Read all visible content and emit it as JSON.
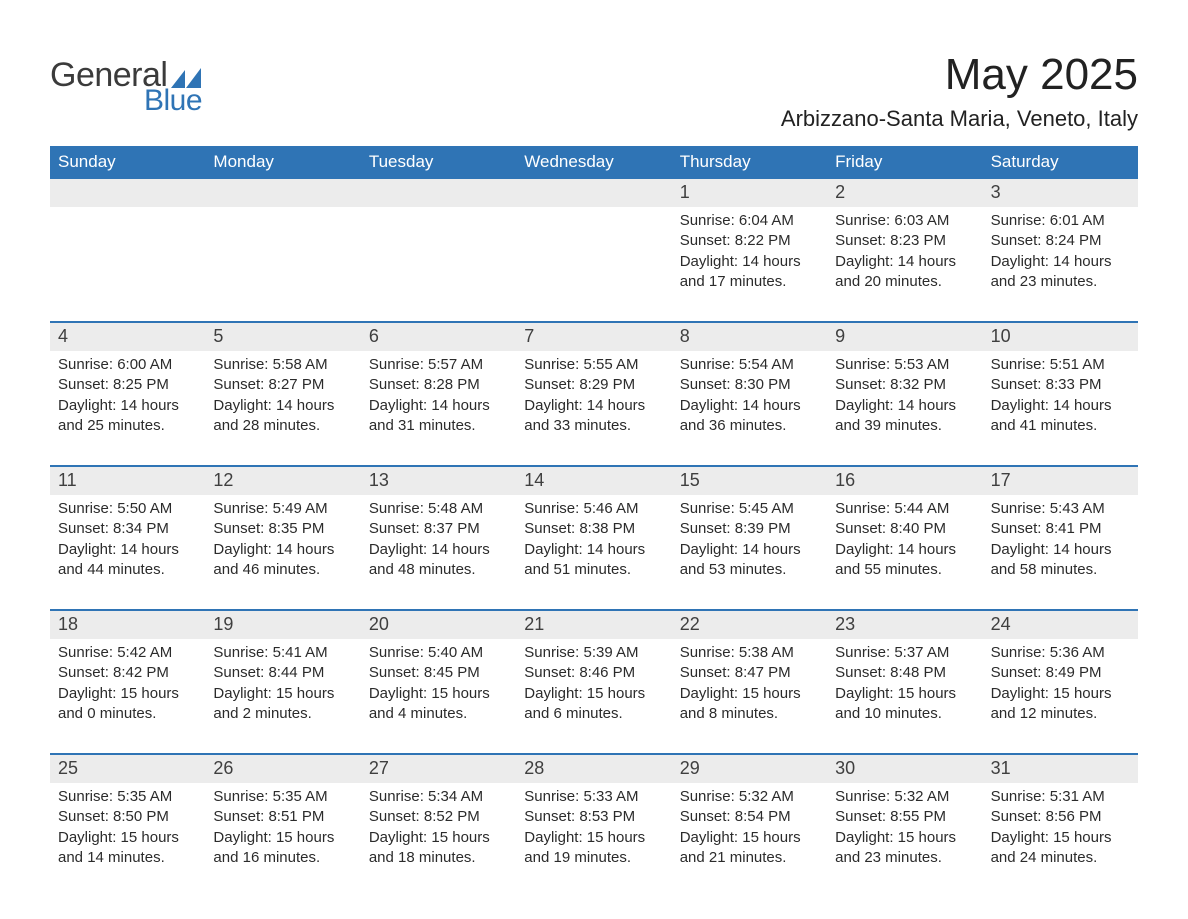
{
  "logo": {
    "text1": "General",
    "text2": "Blue",
    "shape_color": "#2f74b5",
    "text1_color": "#3b3b3b"
  },
  "header": {
    "month_title": "May 2025",
    "location": "Arbizzano-Santa Maria, Veneto, Italy"
  },
  "colors": {
    "header_bg": "#2f74b5",
    "header_text": "#ffffff",
    "daynum_bg": "#ececec",
    "week_border": "#2f74b5",
    "body_text": "#2b2b2b",
    "page_bg": "#ffffff"
  },
  "typography": {
    "month_title_fontsize": 44,
    "location_fontsize": 22,
    "weekday_fontsize": 17,
    "daynum_fontsize": 18,
    "body_fontsize": 15,
    "font_family": "Arial"
  },
  "weekdays": [
    "Sunday",
    "Monday",
    "Tuesday",
    "Wednesday",
    "Thursday",
    "Friday",
    "Saturday"
  ],
  "weeks": [
    [
      null,
      null,
      null,
      null,
      {
        "n": "1",
        "sunrise": "Sunrise: 6:04 AM",
        "sunset": "Sunset: 8:22 PM",
        "daylight": "Daylight: 14 hours and 17 minutes."
      },
      {
        "n": "2",
        "sunrise": "Sunrise: 6:03 AM",
        "sunset": "Sunset: 8:23 PM",
        "daylight": "Daylight: 14 hours and 20 minutes."
      },
      {
        "n": "3",
        "sunrise": "Sunrise: 6:01 AM",
        "sunset": "Sunset: 8:24 PM",
        "daylight": "Daylight: 14 hours and 23 minutes."
      }
    ],
    [
      {
        "n": "4",
        "sunrise": "Sunrise: 6:00 AM",
        "sunset": "Sunset: 8:25 PM",
        "daylight": "Daylight: 14 hours and 25 minutes."
      },
      {
        "n": "5",
        "sunrise": "Sunrise: 5:58 AM",
        "sunset": "Sunset: 8:27 PM",
        "daylight": "Daylight: 14 hours and 28 minutes."
      },
      {
        "n": "6",
        "sunrise": "Sunrise: 5:57 AM",
        "sunset": "Sunset: 8:28 PM",
        "daylight": "Daylight: 14 hours and 31 minutes."
      },
      {
        "n": "7",
        "sunrise": "Sunrise: 5:55 AM",
        "sunset": "Sunset: 8:29 PM",
        "daylight": "Daylight: 14 hours and 33 minutes."
      },
      {
        "n": "8",
        "sunrise": "Sunrise: 5:54 AM",
        "sunset": "Sunset: 8:30 PM",
        "daylight": "Daylight: 14 hours and 36 minutes."
      },
      {
        "n": "9",
        "sunrise": "Sunrise: 5:53 AM",
        "sunset": "Sunset: 8:32 PM",
        "daylight": "Daylight: 14 hours and 39 minutes."
      },
      {
        "n": "10",
        "sunrise": "Sunrise: 5:51 AM",
        "sunset": "Sunset: 8:33 PM",
        "daylight": "Daylight: 14 hours and 41 minutes."
      }
    ],
    [
      {
        "n": "11",
        "sunrise": "Sunrise: 5:50 AM",
        "sunset": "Sunset: 8:34 PM",
        "daylight": "Daylight: 14 hours and 44 minutes."
      },
      {
        "n": "12",
        "sunrise": "Sunrise: 5:49 AM",
        "sunset": "Sunset: 8:35 PM",
        "daylight": "Daylight: 14 hours and 46 minutes."
      },
      {
        "n": "13",
        "sunrise": "Sunrise: 5:48 AM",
        "sunset": "Sunset: 8:37 PM",
        "daylight": "Daylight: 14 hours and 48 minutes."
      },
      {
        "n": "14",
        "sunrise": "Sunrise: 5:46 AM",
        "sunset": "Sunset: 8:38 PM",
        "daylight": "Daylight: 14 hours and 51 minutes."
      },
      {
        "n": "15",
        "sunrise": "Sunrise: 5:45 AM",
        "sunset": "Sunset: 8:39 PM",
        "daylight": "Daylight: 14 hours and 53 minutes."
      },
      {
        "n": "16",
        "sunrise": "Sunrise: 5:44 AM",
        "sunset": "Sunset: 8:40 PM",
        "daylight": "Daylight: 14 hours and 55 minutes."
      },
      {
        "n": "17",
        "sunrise": "Sunrise: 5:43 AM",
        "sunset": "Sunset: 8:41 PM",
        "daylight": "Daylight: 14 hours and 58 minutes."
      }
    ],
    [
      {
        "n": "18",
        "sunrise": "Sunrise: 5:42 AM",
        "sunset": "Sunset: 8:42 PM",
        "daylight": "Daylight: 15 hours and 0 minutes."
      },
      {
        "n": "19",
        "sunrise": "Sunrise: 5:41 AM",
        "sunset": "Sunset: 8:44 PM",
        "daylight": "Daylight: 15 hours and 2 minutes."
      },
      {
        "n": "20",
        "sunrise": "Sunrise: 5:40 AM",
        "sunset": "Sunset: 8:45 PM",
        "daylight": "Daylight: 15 hours and 4 minutes."
      },
      {
        "n": "21",
        "sunrise": "Sunrise: 5:39 AM",
        "sunset": "Sunset: 8:46 PM",
        "daylight": "Daylight: 15 hours and 6 minutes."
      },
      {
        "n": "22",
        "sunrise": "Sunrise: 5:38 AM",
        "sunset": "Sunset: 8:47 PM",
        "daylight": "Daylight: 15 hours and 8 minutes."
      },
      {
        "n": "23",
        "sunrise": "Sunrise: 5:37 AM",
        "sunset": "Sunset: 8:48 PM",
        "daylight": "Daylight: 15 hours and 10 minutes."
      },
      {
        "n": "24",
        "sunrise": "Sunrise: 5:36 AM",
        "sunset": "Sunset: 8:49 PM",
        "daylight": "Daylight: 15 hours and 12 minutes."
      }
    ],
    [
      {
        "n": "25",
        "sunrise": "Sunrise: 5:35 AM",
        "sunset": "Sunset: 8:50 PM",
        "daylight": "Daylight: 15 hours and 14 minutes."
      },
      {
        "n": "26",
        "sunrise": "Sunrise: 5:35 AM",
        "sunset": "Sunset: 8:51 PM",
        "daylight": "Daylight: 15 hours and 16 minutes."
      },
      {
        "n": "27",
        "sunrise": "Sunrise: 5:34 AM",
        "sunset": "Sunset: 8:52 PM",
        "daylight": "Daylight: 15 hours and 18 minutes."
      },
      {
        "n": "28",
        "sunrise": "Sunrise: 5:33 AM",
        "sunset": "Sunset: 8:53 PM",
        "daylight": "Daylight: 15 hours and 19 minutes."
      },
      {
        "n": "29",
        "sunrise": "Sunrise: 5:32 AM",
        "sunset": "Sunset: 8:54 PM",
        "daylight": "Daylight: 15 hours and 21 minutes."
      },
      {
        "n": "30",
        "sunrise": "Sunrise: 5:32 AM",
        "sunset": "Sunset: 8:55 PM",
        "daylight": "Daylight: 15 hours and 23 minutes."
      },
      {
        "n": "31",
        "sunrise": "Sunrise: 5:31 AM",
        "sunset": "Sunset: 8:56 PM",
        "daylight": "Daylight: 15 hours and 24 minutes."
      }
    ]
  ]
}
